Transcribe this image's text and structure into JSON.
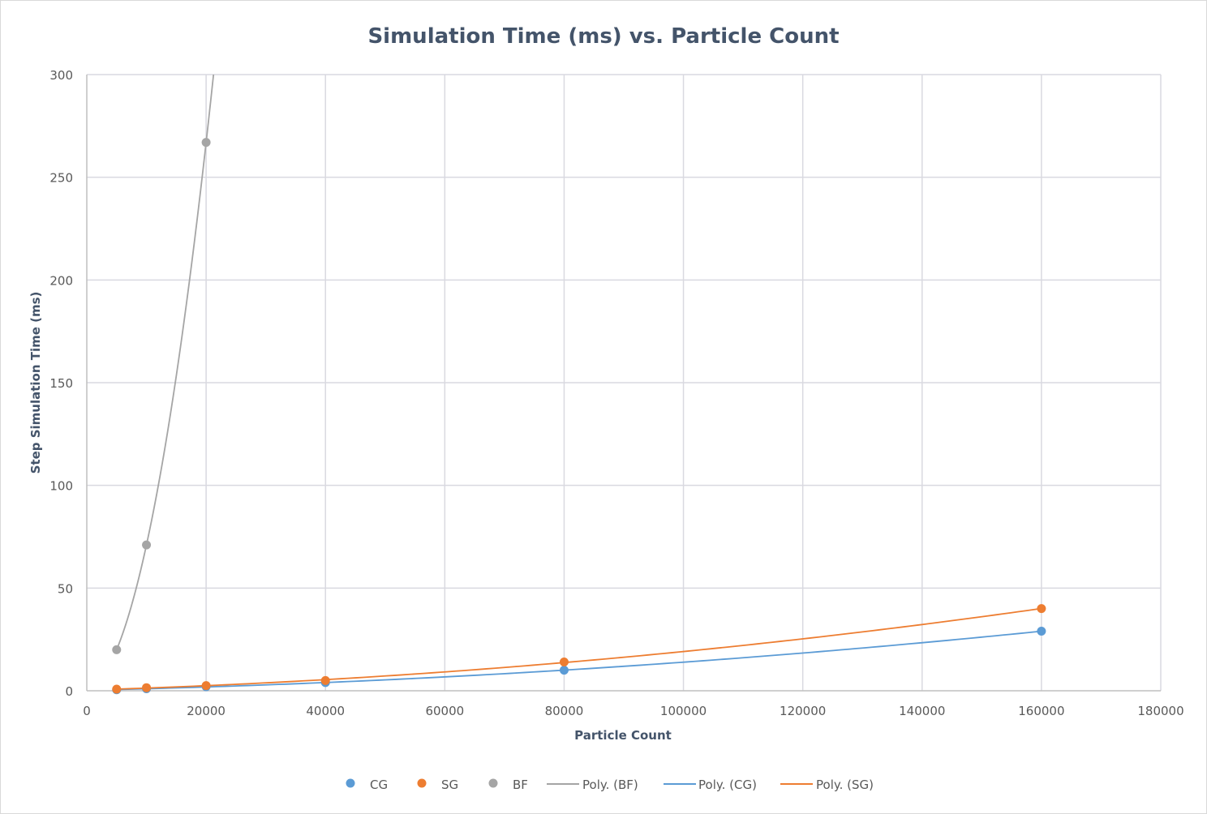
{
  "chart_data": {
    "type": "scatter",
    "title": "Simulation Time (ms) vs. Particle Count",
    "xlabel": "Particle Count",
    "ylabel": "Step Simulation Time (ms)",
    "xlim": [
      0,
      180000
    ],
    "ylim": [
      0,
      300
    ],
    "xticks": [
      0,
      20000,
      40000,
      60000,
      80000,
      100000,
      120000,
      140000,
      160000,
      180000
    ],
    "yticks": [
      0,
      50,
      100,
      150,
      200,
      250,
      300
    ],
    "grid": true,
    "legend_position": "bottom",
    "series": [
      {
        "name": "CG",
        "color": "#5b9bd5",
        "x": [
          5000,
          10000,
          20000,
          40000,
          80000,
          160000
        ],
        "y": [
          0.5,
          1,
          2,
          4,
          10,
          29
        ]
      },
      {
        "name": "SG",
        "color": "#ed7d31",
        "x": [
          5000,
          10000,
          20000,
          40000,
          80000,
          160000
        ],
        "y": [
          0.8,
          1.5,
          2.5,
          5,
          14,
          40
        ]
      },
      {
        "name": "BF",
        "color": "#a5a5a5",
        "x": [
          5000,
          10000,
          20000
        ],
        "y": [
          20,
          71,
          267
        ]
      }
    ],
    "trendlines": [
      {
        "name": "Poly.  (BF)",
        "color": "#a5a5a5",
        "of": "BF",
        "type": "polynomial"
      },
      {
        "name": "Poly.  (CG)",
        "color": "#5b9bd5",
        "of": "CG",
        "type": "polynomial"
      },
      {
        "name": "Poly.  (SG)",
        "color": "#ed7d31",
        "of": "SG",
        "type": "polynomial"
      }
    ]
  }
}
